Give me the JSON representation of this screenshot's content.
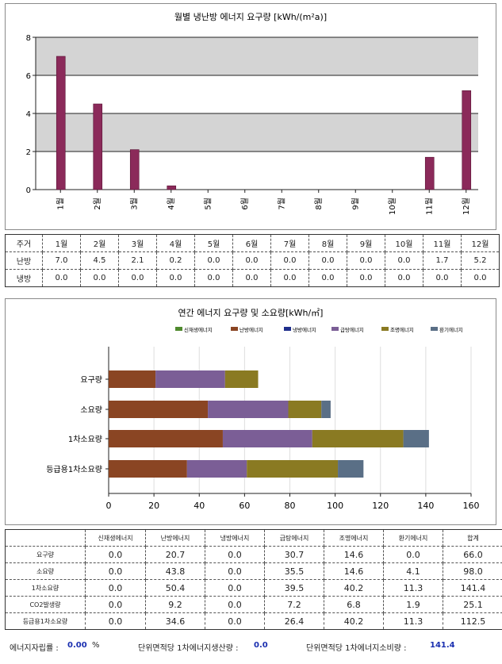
{
  "chart_data": [
    {
      "type": "bar",
      "title": "월별 냉난방 에너지 요구량 [kWh/(m²a)]",
      "categories": [
        "1월",
        "2월",
        "3월",
        "4월",
        "5월",
        "6월",
        "7월",
        "8월",
        "9월",
        "10월",
        "11월",
        "12월"
      ],
      "series": [
        {
          "name": "난방",
          "values": [
            7.0,
            4.5,
            2.1,
            0.2,
            0.0,
            0.0,
            0.0,
            0.0,
            0.0,
            0.0,
            1.7,
            5.2
          ],
          "color": "#8b2a5a"
        }
      ],
      "ylim": [
        0,
        8
      ],
      "yticks": [
        "0",
        "2",
        "4",
        "6",
        "8"
      ],
      "grid": true,
      "bands": "alternating gray"
    },
    {
      "type": "bar",
      "orientation": "horizontal",
      "stacked": true,
      "title": "연간 에너지 요구량 및 소요량[kWh/㎡]",
      "categories": [
        "요구량",
        "소요량",
        "1차소요량",
        "등급용1차소요량"
      ],
      "series": [
        {
          "name": "신재생에너지",
          "values": [
            0.0,
            0.0,
            0.0,
            0.0
          ],
          "color": "#4f8a2e"
        },
        {
          "name": "난방에너지",
          "values": [
            20.7,
            43.8,
            50.4,
            34.6
          ],
          "color": "#8a4523"
        },
        {
          "name": "냉방에너지",
          "values": [
            0.0,
            0.0,
            0.0,
            0.0
          ],
          "color": "#1f2f8c"
        },
        {
          "name": "급탕에너지",
          "values": [
            30.7,
            35.5,
            39.5,
            26.4
          ],
          "color": "#7b5e96"
        },
        {
          "name": "조명에너지",
          "values": [
            14.6,
            14.6,
            40.2,
            40.2
          ],
          "color": "#8a7a22"
        },
        {
          "name": "환기에너지",
          "values": [
            0.0,
            4.1,
            11.3,
            11.3
          ],
          "color": "#5a6f86"
        }
      ],
      "xlim": [
        0,
        160
      ],
      "xticks": [
        "0",
        "20",
        "40",
        "60",
        "80",
        "100",
        "120",
        "140",
        "160"
      ],
      "legend": "top"
    }
  ],
  "monthly_table": {
    "header": [
      "주거",
      "1월",
      "2월",
      "3월",
      "4월",
      "5월",
      "6월",
      "7월",
      "8월",
      "9월",
      "10월",
      "11월",
      "12월"
    ],
    "rows": [
      [
        "난방",
        "7.0",
        "4.5",
        "2.1",
        "0.2",
        "0.0",
        "0.0",
        "0.0",
        "0.0",
        "0.0",
        "0.0",
        "1.7",
        "5.2"
      ],
      [
        "냉방",
        "0.0",
        "0.0",
        "0.0",
        "0.0",
        "0.0",
        "0.0",
        "0.0",
        "0.0",
        "0.0",
        "0.0",
        "0.0",
        "0.0"
      ]
    ]
  },
  "annual_table": {
    "header": [
      "",
      "신재생에너지",
      "난방에너지",
      "냉방에너지",
      "급탕에너지",
      "조명에너지",
      "환기에너지",
      "합계"
    ],
    "rows": [
      [
        "요구량",
        "0.0",
        "20.7",
        "0.0",
        "30.7",
        "14.6",
        "0.0",
        "66.0"
      ],
      [
        "소요량",
        "0.0",
        "43.8",
        "0.0",
        "35.5",
        "14.6",
        "4.1",
        "98.0"
      ],
      [
        "1차소요량",
        "0.0",
        "50.4",
        "0.0",
        "39.5",
        "40.2",
        "11.3",
        "141.4"
      ],
      [
        "CO2발생량",
        "0.0",
        "9.2",
        "0.0",
        "7.2",
        "6.8",
        "1.9",
        "25.1"
      ],
      [
        "등급용1차소요량",
        "0.0",
        "34.6",
        "0.0",
        "26.4",
        "40.2",
        "11.3",
        "112.5"
      ]
    ]
  },
  "footer": {
    "self_label": "에너지자립률 :",
    "self_value": "0.00",
    "self_unit": "%",
    "prod_label": "단위면적당 1차에너지생산량 :",
    "prod_value": "0.0",
    "cons_label": "단위면적당 1차에너지소비량 :",
    "cons_value": "141.4"
  }
}
